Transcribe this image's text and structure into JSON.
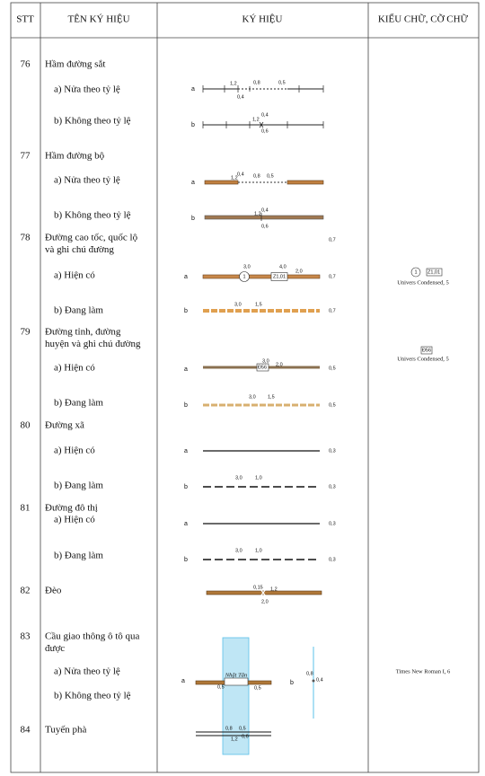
{
  "header": [
    "STT",
    "TÊN KÝ HIỆU",
    "KÝ HIỆU",
    "KIỂU CHỮ, CỠ CHỮ"
  ],
  "rows": [
    {
      "stt": "76",
      "name": [
        "Hầm đường sắt"
      ],
      "items": [
        "a) Nửa theo tỷ lệ",
        "b) Không theo tỷ lệ"
      ],
      "symbol": [
        "a",
        "1,2",
        "0,8",
        "0,5",
        "0,4",
        "b",
        "1,2",
        "0,4",
        "0,6"
      ],
      "font": []
    },
    {
      "stt": "77",
      "name": [
        "Hầm đường bộ"
      ],
      "items": [
        "a) Nửa theo tỷ lệ",
        "b) Không theo tỷ lệ"
      ],
      "symbol": [
        "a",
        "1,2",
        "0,4",
        "0,8",
        "0,5",
        "b",
        "1,2",
        "0,4",
        "0,6"
      ],
      "font": []
    },
    {
      "stt": "78",
      "name": [
        "Đường cao tốc, quốc lộ",
        "và ghi chú đường"
      ],
      "items": [
        "a) Hiện có",
        "b) Đang làm"
      ],
      "symbol": [
        "0,7",
        "a",
        "3,0",
        "1",
        "Z1,01",
        "4,0",
        "2,0",
        "0,7",
        "b",
        "3,0",
        "1,5",
        "0,7"
      ],
      "font": [
        "1",
        "Z1,01",
        "Univers Condensed, 5"
      ]
    },
    {
      "stt": "79",
      "name": [
        "Đường tỉnh, đường",
        "huyện và ghi chú đường"
      ],
      "items": [
        "a) Hiện có",
        "b) Đang làm"
      ],
      "symbol": [
        "a",
        "Đ56",
        "3,0",
        "2,0",
        "0,5",
        "b",
        "3,0",
        "1,5",
        "0,5"
      ],
      "font": [
        "Đ56",
        "Univers Condensed, 5"
      ]
    },
    {
      "stt": "80",
      "name": [
        "Đường xã"
      ],
      "items": [
        "a) Hiện có",
        "b) Đang làm"
      ],
      "symbol": [
        "a",
        "0,3",
        "b",
        "3,0",
        "1,0",
        "0,3"
      ],
      "font": []
    },
    {
      "stt": "81",
      "name": [
        "Đường đô thị"
      ],
      "items": [
        "a) Hiện có",
        "b) Đang làm"
      ],
      "symbol": [
        "a",
        "0,3",
        "b",
        "3,0",
        "1,0",
        "0,3"
      ],
      "font": []
    },
    {
      "stt": "82",
      "name": [
        "Đèo"
      ],
      "items": [],
      "symbol": [
        "0,15",
        "1,2",
        "2,0"
      ],
      "font": []
    },
    {
      "stt": "83",
      "name": [
        "Cầu giao thông ô tô qua",
        "được"
      ],
      "items": [
        "a) Nửa theo tỷ lệ",
        "b) Không theo tỷ lệ"
      ],
      "symbol": [
        "a",
        "Nhật Tân",
        "0,5",
        "0,5",
        "b",
        "0,8",
        "0,4"
      ],
      "font": [
        "Times New Roman I, 6"
      ]
    },
    {
      "stt": "84",
      "name": [
        "Tuyến phà"
      ],
      "items": [],
      "symbol": [
        "0,8",
        "0,5",
        "1,2",
        "0,6"
      ],
      "font": []
    }
  ]
}
